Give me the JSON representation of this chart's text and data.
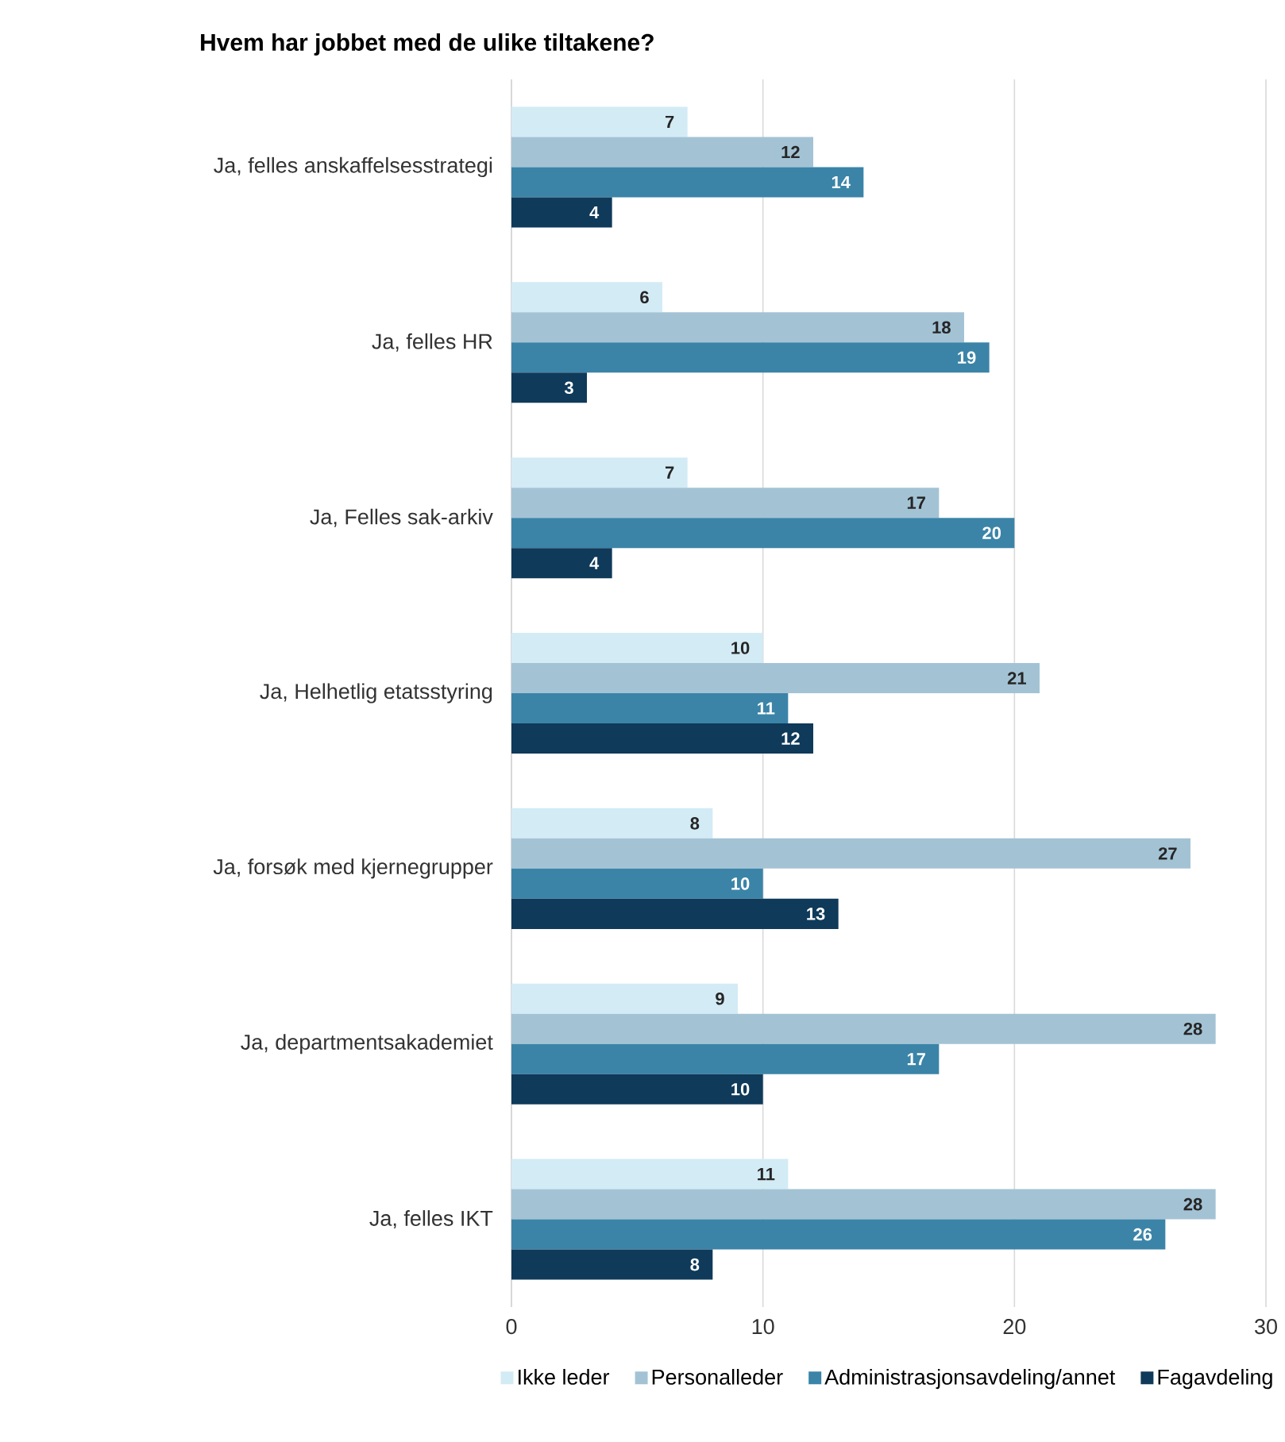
{
  "chart_data": {
    "type": "bar",
    "orientation": "horizontal",
    "title": "Hvem har jobbet med de ulike tiltakene?",
    "categories": [
      "Ja, felles anskaffelsesstrategi",
      "Ja, felles HR",
      "Ja, Felles sak-arkiv",
      "Ja, Helhetlig etatsstyring",
      "Ja, forsøk med kjernegrupper",
      "Ja, departmentsakademiet",
      "Ja, felles IKT"
    ],
    "series": [
      {
        "name": "Ikke leder",
        "color": "#d3ebf5",
        "values": [
          7,
          6,
          7,
          10,
          8,
          9,
          11
        ]
      },
      {
        "name": "Personalleder",
        "color": "#a3c3d5",
        "values": [
          12,
          18,
          17,
          21,
          27,
          28,
          28
        ]
      },
      {
        "name": "Administrasjonsavdeling/annet",
        "color": "#3b84a8",
        "values": [
          14,
          19,
          20,
          11,
          10,
          17,
          26
        ]
      },
      {
        "name": "Fagavdeling",
        "color": "#0f3a5a",
        "values": [
          4,
          3,
          4,
          12,
          13,
          10,
          8
        ]
      }
    ],
    "xlim": [
      0,
      30
    ],
    "xticks": [
      0,
      10,
      20,
      30
    ],
    "grid": "x",
    "legend": "bottom",
    "data_labels": true
  }
}
